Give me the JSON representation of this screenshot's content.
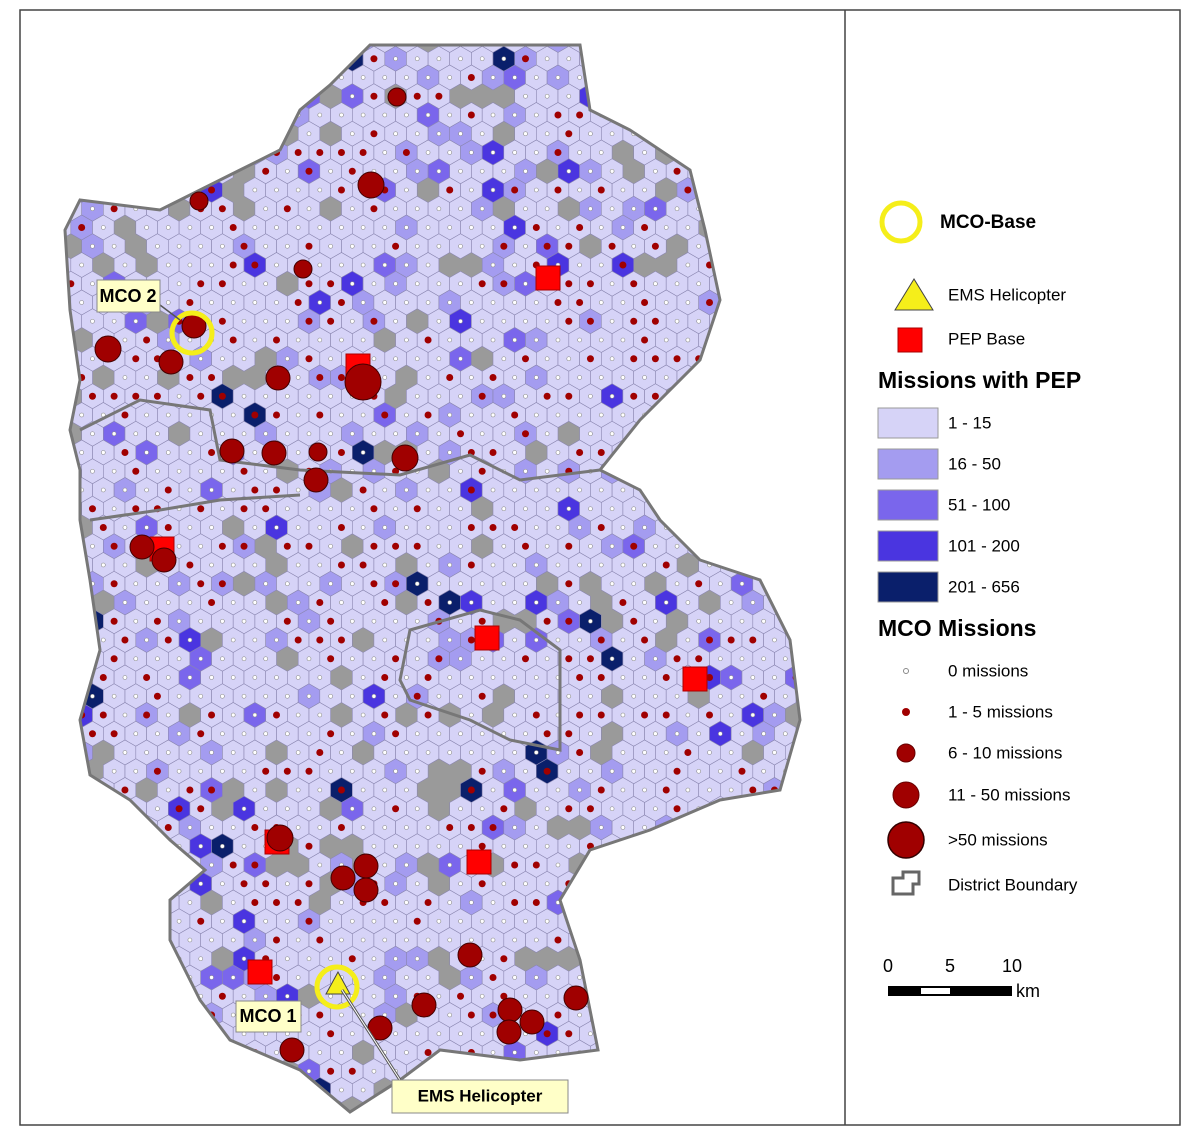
{
  "map": {
    "labels": {
      "mco2": "MCO 2",
      "mco1": "MCO 1",
      "ems_helicopter": "EMS Helicopter"
    },
    "legend": {
      "mco_base": "MCO-Base",
      "ems_helicopter": "EMS Helicopter",
      "pep_base": "PEP Base",
      "pep_title": "Missions with PEP",
      "pep_classes": [
        {
          "label": "1 - 15",
          "color": "#d6d3f7"
        },
        {
          "label": "16 - 50",
          "color": "#a49cf0"
        },
        {
          "label": "51 - 100",
          "color": "#7a66ec"
        },
        {
          "label": "101 - 200",
          "color": "#4a35e0"
        },
        {
          "label": "201 - 656",
          "color": "#0a1f6b"
        }
      ],
      "mco_title": "MCO Missions",
      "mco_classes": [
        "0 missions",
        "1 - 5 missions",
        "6 - 10 missions",
        "11 - 50 missions",
        ">50 missions"
      ],
      "district_boundary": "District Boundary"
    },
    "scale": {
      "ticks": [
        0,
        5,
        10
      ],
      "unit": "km"
    }
  }
}
